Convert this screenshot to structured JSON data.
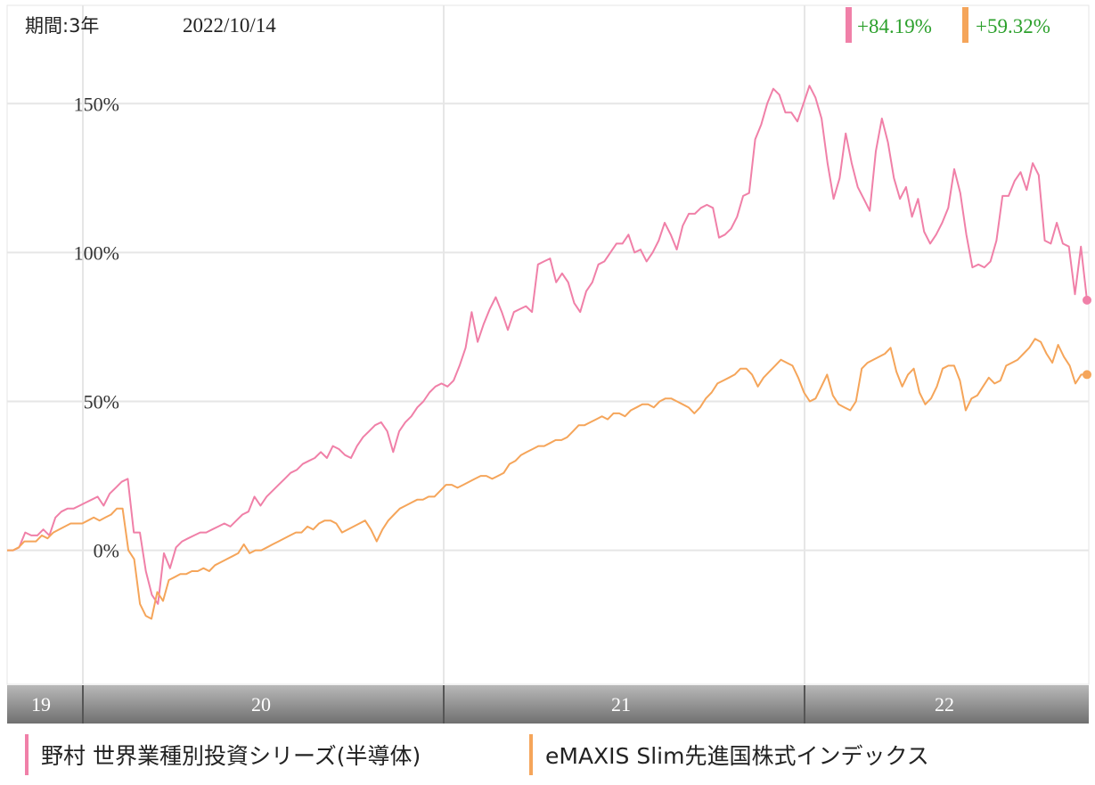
{
  "header": {
    "period_label": "期間:3年",
    "date_label": "2022/10/14"
  },
  "colors": {
    "series_pink": "#f080a8",
    "series_orange": "#f5a55a",
    "return_text": "#2ca02c",
    "grid": "#e6e6e6",
    "axis_bar_top": "#b8b8b8",
    "axis_bar_bottom": "#707070"
  },
  "chart_data": {
    "type": "line",
    "title": "",
    "xlabel": "",
    "ylabel": "",
    "x_ticks": [
      "19",
      "20",
      "21",
      "22"
    ],
    "y_ticks": [
      "0%",
      "50%",
      "100%",
      "150%"
    ],
    "ylim": [
      -45,
      183
    ],
    "grid": true,
    "legend_position": "bottom",
    "series": [
      {
        "name": "野村 世界業種別投資シリーズ(半導体)",
        "color": "#f080a8",
        "final_return": "+84.19%",
        "values": [
          0,
          0,
          1,
          6,
          5,
          5,
          7,
          5,
          11,
          13,
          14,
          14,
          15,
          16,
          17,
          18,
          15,
          19,
          21,
          23,
          24,
          6,
          6,
          -7,
          -15,
          -18,
          -1,
          -6,
          1,
          3,
          4,
          5,
          6,
          6,
          7,
          8,
          9,
          8,
          10,
          12,
          13,
          18,
          15,
          18,
          20,
          22,
          24,
          26,
          27,
          29,
          30,
          31,
          33,
          31,
          35,
          34,
          32,
          31,
          35,
          38,
          40,
          42,
          43,
          40,
          33,
          40,
          43,
          45,
          48,
          50,
          53,
          55,
          56,
          55,
          57,
          62,
          68,
          80,
          70,
          76,
          81,
          85,
          80,
          74,
          80,
          81,
          82,
          80,
          96,
          97,
          98,
          90,
          93,
          90,
          83,
          80,
          87,
          90,
          96,
          97,
          100,
          103,
          103,
          106,
          100,
          101,
          97,
          100,
          104,
          110,
          106,
          101,
          109,
          113,
          113,
          115,
          116,
          115,
          105,
          106,
          108,
          112,
          119,
          120,
          138,
          143,
          150,
          155,
          153,
          147,
          147,
          144,
          150,
          156,
          152,
          145,
          130,
          118,
          125,
          140,
          130,
          122,
          118,
          114,
          134,
          145,
          137,
          125,
          118,
          122,
          112,
          118,
          107,
          103,
          106,
          110,
          115,
          128,
          120,
          106,
          95,
          96,
          95,
          97,
          104,
          119,
          119,
          124,
          127,
          121,
          130,
          126,
          104,
          103,
          110,
          103,
          102,
          86,
          102,
          84
        ]
      },
      {
        "name": "eMAXIS Slim先進国株式インデックス",
        "color": "#f5a55a",
        "final_return": "+59.32%",
        "values": [
          0,
          0,
          1,
          3,
          3,
          3,
          5,
          4,
          6,
          7,
          8,
          9,
          9,
          9,
          10,
          11,
          10,
          11,
          12,
          14,
          14,
          0,
          -3,
          -18,
          -22,
          -23,
          -14,
          -17,
          -10,
          -9,
          -8,
          -8,
          -7,
          -7,
          -6,
          -7,
          -5,
          -4,
          -3,
          -2,
          -1,
          2,
          -1,
          0,
          0,
          1,
          2,
          3,
          4,
          5,
          6,
          6,
          8,
          7,
          9,
          10,
          10,
          9,
          6,
          7,
          8,
          9,
          10,
          7,
          3,
          7,
          10,
          12,
          14,
          15,
          16,
          17,
          17,
          18,
          18,
          20,
          22,
          22,
          21,
          22,
          23,
          24,
          25,
          25,
          24,
          25,
          26,
          29,
          30,
          32,
          33,
          34,
          35,
          35,
          36,
          37,
          37,
          38,
          40,
          42,
          42,
          43,
          44,
          45,
          44,
          46,
          46,
          45,
          47,
          48,
          49,
          49,
          48,
          50,
          51,
          51,
          50,
          49,
          48,
          46,
          48,
          51,
          53,
          56,
          57,
          58,
          59,
          61,
          61,
          59,
          55,
          58,
          60,
          62,
          64,
          63,
          62,
          58,
          53,
          50,
          51,
          55,
          59,
          52,
          49,
          48,
          47,
          50,
          61,
          63,
          64,
          65,
          66,
          68,
          60,
          55,
          59,
          61,
          53,
          49,
          51,
          55,
          61,
          62,
          62,
          57,
          47,
          51,
          52,
          55,
          58,
          56,
          57,
          62,
          63,
          64,
          66,
          68,
          71,
          70,
          66,
          63,
          69,
          65,
          62,
          56,
          59,
          59
        ]
      }
    ]
  },
  "legend": {
    "items": [
      {
        "label": "野村 世界業種別投資シリーズ(半導体)"
      },
      {
        "label": "eMAXIS Slim先進国株式インデックス"
      }
    ]
  }
}
